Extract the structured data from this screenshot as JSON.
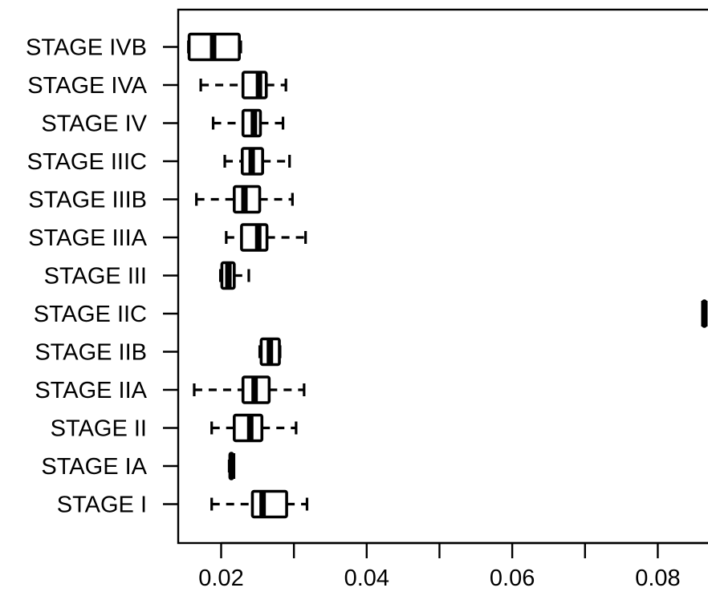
{
  "chart_data": {
    "type": "boxplot",
    "orientation": "horizontal",
    "title": "",
    "xlabel": "",
    "ylabel": "",
    "xlim": [
      0.0141,
      0.0869
    ],
    "x_ticks": [
      0.02,
      0.04,
      0.06,
      0.08
    ],
    "x_tick_labels": [
      "0.02",
      "0.04",
      "0.06",
      "0.08"
    ],
    "categories": [
      "STAGE IVB",
      "STAGE IVA",
      "STAGE IV",
      "STAGE IIIC",
      "STAGE IIIB",
      "STAGE IIIA",
      "STAGE III",
      "STAGE IIC",
      "STAGE IIB",
      "STAGE IIA",
      "STAGE II",
      "STAGE IA",
      "STAGE I"
    ],
    "boxes": [
      {
        "category": "STAGE IVB",
        "whisker_low": 0.0155,
        "q1": 0.0156,
        "median": 0.0189,
        "q3": 0.0225,
        "whisker_high": 0.0227
      },
      {
        "category": "STAGE IVA",
        "whisker_low": 0.0172,
        "q1": 0.023,
        "median": 0.0252,
        "q3": 0.0262,
        "whisker_high": 0.0289
      },
      {
        "category": "STAGE IV",
        "whisker_low": 0.0189,
        "q1": 0.023,
        "median": 0.0245,
        "q3": 0.0254,
        "whisker_high": 0.0285
      },
      {
        "category": "STAGE IIIC",
        "whisker_low": 0.0205,
        "q1": 0.0229,
        "median": 0.0242,
        "q3": 0.0257,
        "whisker_high": 0.0294
      },
      {
        "category": "STAGE IIIB",
        "whisker_low": 0.0166,
        "q1": 0.0218,
        "median": 0.0232,
        "q3": 0.0253,
        "whisker_high": 0.0298
      },
      {
        "category": "STAGE IIIA",
        "whisker_low": 0.0207,
        "q1": 0.0228,
        "median": 0.0251,
        "q3": 0.0263,
        "whisker_high": 0.0316
      },
      {
        "category": "STAGE III",
        "whisker_low": 0.0199,
        "q1": 0.0201,
        "median": 0.021,
        "q3": 0.0218,
        "whisker_high": 0.0238
      },
      {
        "category": "STAGE IIC",
        "whisker_low": 0.0862,
        "q1": 0.0862,
        "median": 0.0864,
        "q3": 0.0866,
        "whisker_high": 0.0866
      },
      {
        "category": "STAGE IIB",
        "whisker_low": 0.0253,
        "q1": 0.0255,
        "median": 0.0267,
        "q3": 0.028,
        "whisker_high": 0.0281
      },
      {
        "category": "STAGE IIA",
        "whisker_low": 0.0163,
        "q1": 0.023,
        "median": 0.0246,
        "q3": 0.0266,
        "whisker_high": 0.0314
      },
      {
        "category": "STAGE II",
        "whisker_low": 0.0187,
        "q1": 0.0218,
        "median": 0.024,
        "q3": 0.0256,
        "whisker_high": 0.0303
      },
      {
        "category": "STAGE IA",
        "whisker_low": 0.0211,
        "q1": 0.0212,
        "median": 0.0215,
        "q3": 0.0216,
        "whisker_high": 0.0217
      },
      {
        "category": "STAGE I",
        "whisker_low": 0.0187,
        "q1": 0.0243,
        "median": 0.0257,
        "q3": 0.029,
        "whisker_high": 0.0318
      }
    ],
    "grid": false,
    "legend": "none",
    "colors": {
      "stroke": "#000000",
      "background": "#ffffff"
    }
  }
}
